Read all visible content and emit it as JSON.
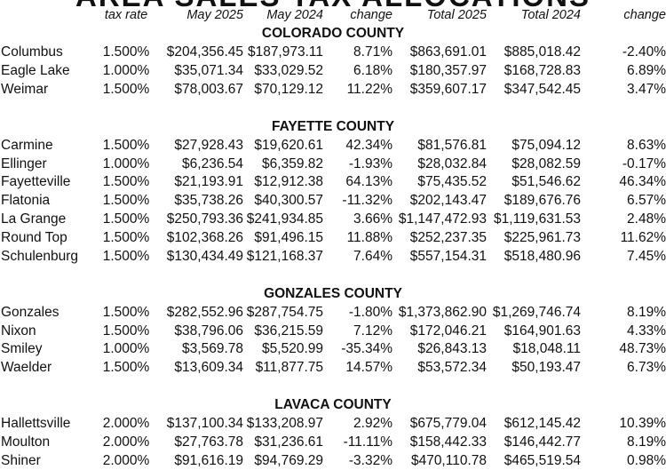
{
  "banner": "AREA SALES TAX ALLOCATIONS",
  "headers": [
    "",
    "tax rate",
    "May 2025",
    "May 2024",
    "change",
    "Total 2025",
    "Total 2024",
    "change"
  ],
  "counties": [
    {
      "name": "COLORADO COUNTY",
      "rows": [
        [
          "Columbus",
          "1.500%",
          "$204,356.45",
          "$187,973.11",
          "8.71%",
          "$863,691.01",
          "$885,018.42",
          "-2.40%"
        ],
        [
          "Eagle Lake",
          "1.000%",
          "$35,071.34",
          "$33,029.52",
          "6.18%",
          "$180,357.97",
          "$168,728.83",
          "6.89%"
        ],
        [
          "Weimar",
          "1.500%",
          "$78,003.67",
          "$70,129.12",
          "11.22%",
          "$359,607.17",
          "$347,542.45",
          "3.47%"
        ]
      ]
    },
    {
      "name": "FAYETTE COUNTY",
      "rows": [
        [
          "Carmine",
          "1.500%",
          "$27,928.43",
          "$19,620.61",
          "42.34%",
          "$81,576.81",
          "$75,094.12",
          "8.63%"
        ],
        [
          "Ellinger",
          "1.000%",
          "$6,236.54",
          "$6,359.82",
          "-1.93%",
          "$28,032.84",
          "$28,082.59",
          "-0.17%"
        ],
        [
          "Fayetteville",
          "1.500%",
          "$21,193.91",
          "$12,912.38",
          "64.13%",
          "$75,435.52",
          "$51,546.62",
          "46.34%"
        ],
        [
          "Flatonia",
          "1.500%",
          "$35,738.26",
          "$40,300.57",
          "-11.32%",
          "$202,143.47",
          "$189,676.76",
          "6.57%"
        ],
        [
          "La Grange",
          "1.500%",
          "$250,793.36",
          "$241,934.85",
          "3.66%",
          "$1,147,472.93",
          "$1,119,631.53",
          "2.48%"
        ],
        [
          "Round Top",
          "1.500%",
          "$102,368.26",
          "$91,496.15",
          "11.88%",
          "$252,237.35",
          "$225,961.73",
          "11.62%"
        ],
        [
          "Schulenburg",
          "1.500%",
          "$130,434.49",
          "$121,168.37",
          "7.64%",
          "$557,154.31",
          "$518,480.96",
          "7.45%"
        ]
      ]
    },
    {
      "name": "GONZALES COUNTY",
      "rows": [
        [
          "Gonzales",
          "1.500%",
          "$282,552.96",
          "$287,754.75",
          "-1.80%",
          "$1,373,862.90",
          "$1,269,746.74",
          "8.19%"
        ],
        [
          "Nixon",
          "1.500%",
          "$38,796.06",
          "$36,215.59",
          "7.12%",
          "$172,046.21",
          "$164,901.63",
          "4.33%"
        ],
        [
          "Smiley",
          "1.000%",
          "$3,569.78",
          "$5,520.99",
          "-35.34%",
          "$26,843.13",
          "$18,048.11",
          "48.73%"
        ],
        [
          "Waelder",
          "1.500%",
          "$13,609.34",
          "$11,877.75",
          "14.57%",
          "$53,572.34",
          "$50,193.47",
          "6.73%"
        ]
      ]
    },
    {
      "name": "LAVACA COUNTY",
      "rows": [
        [
          "Hallettsville",
          "2.000%",
          "$137,100.34",
          "$133,208.97",
          "2.92%",
          "$675,779.04",
          "$612,145.42",
          "10.39%"
        ],
        [
          "Moulton",
          "2.000%",
          "$27,763.78",
          "$31,236.61",
          "-11.11%",
          "$158,442.33",
          "$146,442.77",
          "8.19%"
        ],
        [
          "Shiner",
          "2.000%",
          "$91,616.19",
          "$94,769.29",
          "-3.32%",
          "$470,110.78",
          "$465,519.54",
          "0.98%"
        ]
      ]
    }
  ]
}
